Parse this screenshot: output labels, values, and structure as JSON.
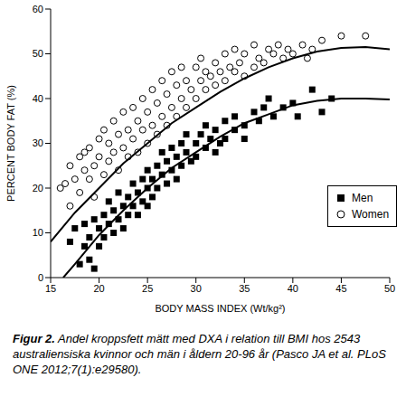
{
  "chart_data": {
    "type": "scatter",
    "x_label": "BODY MASS INDEX (Wt/kg²)",
    "y_label": "PERCENT BODY FAT (%)",
    "xlim": [
      15,
      50
    ],
    "xticks": [
      15,
      20,
      25,
      30,
      35,
      40,
      45,
      50
    ],
    "ylim": [
      0,
      60
    ],
    "yticks": [
      0,
      10,
      20,
      30,
      40,
      50,
      60
    ],
    "grid": false,
    "legend": "bottom-right",
    "caption": {
      "label": "Figur 2.",
      "text": "Andel kroppsfett mätt med DXA i relation till BMI hos 2543 australiensiska kvinnor och män i åldern 20-96 år (Pasco JA et al. PLoS ONE 2012;7(1):e29580)."
    },
    "series": [
      {
        "name": "Men",
        "type": "scatter",
        "marker": "square",
        "color": "#000000",
        "x": [
          17,
          17.5,
          18,
          18.5,
          18.5,
          19,
          19,
          19.5,
          19.5,
          20,
          20,
          20.5,
          20.5,
          21,
          21,
          21.5,
          21.5,
          22,
          22,
          22.5,
          22.5,
          23,
          23,
          23.5,
          23.5,
          24,
          24,
          24.5,
          24.5,
          25,
          25,
          25,
          25.5,
          25.5,
          26,
          26,
          26.5,
          26.5,
          27,
          27,
          27.5,
          27.5,
          28,
          28,
          28.5,
          28.5,
          29,
          29,
          29.5,
          30,
          30,
          30.5,
          31,
          31,
          31.5,
          32,
          32,
          32.5,
          33,
          33,
          34,
          34,
          35,
          35,
          36,
          36.5,
          37,
          38,
          39,
          40,
          40.5,
          42,
          43,
          44,
          37.5
        ],
        "values": [
          8,
          11,
          3,
          7,
          12,
          4,
          9,
          13,
          2,
          11,
          7,
          14,
          9,
          12,
          17,
          10,
          15,
          13,
          19,
          16,
          11,
          18,
          14,
          21,
          16,
          19,
          14,
          22,
          17,
          20,
          24,
          16,
          22,
          18,
          25,
          20,
          23,
          28,
          21,
          26,
          24,
          29,
          27,
          22,
          30,
          25,
          28,
          32,
          26,
          30,
          27,
          32,
          29,
          34,
          31,
          33,
          28,
          30,
          35,
          31,
          33,
          36,
          34,
          31,
          37,
          35,
          38,
          36,
          38,
          39,
          36,
          42,
          37,
          40,
          40
        ]
      },
      {
        "name": "Women",
        "type": "scatter",
        "marker": "open_circle",
        "color": "#000000",
        "x": [
          16,
          16.5,
          17,
          17,
          17.5,
          18,
          18,
          18.5,
          18.5,
          19,
          19,
          19.5,
          19.5,
          20,
          20,
          20.5,
          20.5,
          21,
          21,
          21.5,
          21.5,
          22,
          22,
          22.5,
          22.5,
          23,
          23,
          23.5,
          23.5,
          24,
          24,
          24.5,
          24.5,
          25,
          25,
          25.5,
          25.5,
          26,
          26,
          26.5,
          26.5,
          27,
          27,
          27.5,
          27.5,
          28,
          28,
          28.5,
          28.5,
          29,
          29,
          29.5,
          30,
          30,
          30.5,
          30.5,
          31,
          31,
          31.5,
          32,
          32,
          32.5,
          33,
          33,
          33.5,
          34,
          34,
          34.5,
          35,
          35,
          36,
          36,
          36.5,
          37,
          37.5,
          38,
          38.5,
          39,
          39.5,
          40,
          41,
          41.5,
          42,
          43,
          45,
          47.5
        ],
        "values": [
          20,
          21,
          16,
          25,
          22,
          19,
          27,
          24,
          28,
          22,
          29,
          25,
          18,
          27,
          31,
          23,
          33,
          26,
          30,
          35,
          28,
          24,
          32,
          37,
          29,
          33,
          27,
          38,
          31,
          35,
          28,
          40,
          33,
          30,
          37,
          42,
          34,
          32,
          39,
          44,
          36,
          34,
          41,
          38,
          46,
          36,
          43,
          40,
          47,
          38,
          44,
          42,
          40,
          47,
          44,
          49,
          42,
          46,
          45,
          43,
          48,
          46,
          44,
          50,
          47,
          46,
          51,
          48,
          45,
          50,
          47,
          52,
          49,
          48,
          51,
          50,
          52,
          49,
          51,
          50,
          52,
          49,
          51,
          53,
          54,
          54
        ]
      },
      {
        "type": "line",
        "line_style": "solid",
        "color": "#000000",
        "x": [
          15,
          17.5,
          20,
          22.5,
          25,
          27.5,
          30,
          32.5,
          35,
          37.5,
          40,
          42.5,
          45,
          47.5,
          50
        ],
        "values": [
          8,
          14.5,
          20,
          25.5,
          30,
          34.5,
          38,
          41.5,
          44.5,
          47,
          49,
          50.5,
          51.3,
          51.5,
          51
        ]
      },
      {
        "type": "line",
        "line_style": "solid",
        "color": "#000000",
        "x": [
          16.3,
          17.5,
          20,
          22.5,
          25,
          27.5,
          30,
          32.5,
          35,
          37.5,
          40,
          42.5,
          45,
          47.5,
          50
        ],
        "values": [
          0,
          3,
          9.5,
          15,
          20,
          24.5,
          28,
          31.5,
          34.5,
          36.5,
          38.5,
          39.5,
          40,
          40,
          39.8
        ]
      }
    ]
  }
}
